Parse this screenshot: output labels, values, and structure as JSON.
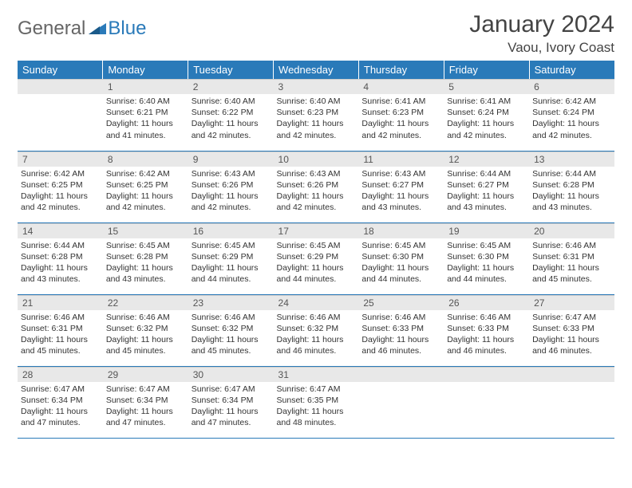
{
  "logo": {
    "part1": "General",
    "part2": "Blue"
  },
  "title": "January 2024",
  "location": "Vaou, Ivory Coast",
  "colors": {
    "header_bg": "#2a7ab9",
    "header_text": "#ffffff",
    "daynum_bg": "#e8e8e8",
    "body_text": "#333333",
    "row_border": "#2a7ab9"
  },
  "weekdays": [
    "Sunday",
    "Monday",
    "Tuesday",
    "Wednesday",
    "Thursday",
    "Friday",
    "Saturday"
  ],
  "leading_blanks": 1,
  "days": [
    {
      "n": "1",
      "sunrise": "6:40 AM",
      "sunset": "6:21 PM",
      "daylight": "11 hours and 41 minutes."
    },
    {
      "n": "2",
      "sunrise": "6:40 AM",
      "sunset": "6:22 PM",
      "daylight": "11 hours and 42 minutes."
    },
    {
      "n": "3",
      "sunrise": "6:40 AM",
      "sunset": "6:23 PM",
      "daylight": "11 hours and 42 minutes."
    },
    {
      "n": "4",
      "sunrise": "6:41 AM",
      "sunset": "6:23 PM",
      "daylight": "11 hours and 42 minutes."
    },
    {
      "n": "5",
      "sunrise": "6:41 AM",
      "sunset": "6:24 PM",
      "daylight": "11 hours and 42 minutes."
    },
    {
      "n": "6",
      "sunrise": "6:42 AM",
      "sunset": "6:24 PM",
      "daylight": "11 hours and 42 minutes."
    },
    {
      "n": "7",
      "sunrise": "6:42 AM",
      "sunset": "6:25 PM",
      "daylight": "11 hours and 42 minutes."
    },
    {
      "n": "8",
      "sunrise": "6:42 AM",
      "sunset": "6:25 PM",
      "daylight": "11 hours and 42 minutes."
    },
    {
      "n": "9",
      "sunrise": "6:43 AM",
      "sunset": "6:26 PM",
      "daylight": "11 hours and 42 minutes."
    },
    {
      "n": "10",
      "sunrise": "6:43 AM",
      "sunset": "6:26 PM",
      "daylight": "11 hours and 42 minutes."
    },
    {
      "n": "11",
      "sunrise": "6:43 AM",
      "sunset": "6:27 PM",
      "daylight": "11 hours and 43 minutes."
    },
    {
      "n": "12",
      "sunrise": "6:44 AM",
      "sunset": "6:27 PM",
      "daylight": "11 hours and 43 minutes."
    },
    {
      "n": "13",
      "sunrise": "6:44 AM",
      "sunset": "6:28 PM",
      "daylight": "11 hours and 43 minutes."
    },
    {
      "n": "14",
      "sunrise": "6:44 AM",
      "sunset": "6:28 PM",
      "daylight": "11 hours and 43 minutes."
    },
    {
      "n": "15",
      "sunrise": "6:45 AM",
      "sunset": "6:28 PM",
      "daylight": "11 hours and 43 minutes."
    },
    {
      "n": "16",
      "sunrise": "6:45 AM",
      "sunset": "6:29 PM",
      "daylight": "11 hours and 44 minutes."
    },
    {
      "n": "17",
      "sunrise": "6:45 AM",
      "sunset": "6:29 PM",
      "daylight": "11 hours and 44 minutes."
    },
    {
      "n": "18",
      "sunrise": "6:45 AM",
      "sunset": "6:30 PM",
      "daylight": "11 hours and 44 minutes."
    },
    {
      "n": "19",
      "sunrise": "6:45 AM",
      "sunset": "6:30 PM",
      "daylight": "11 hours and 44 minutes."
    },
    {
      "n": "20",
      "sunrise": "6:46 AM",
      "sunset": "6:31 PM",
      "daylight": "11 hours and 45 minutes."
    },
    {
      "n": "21",
      "sunrise": "6:46 AM",
      "sunset": "6:31 PM",
      "daylight": "11 hours and 45 minutes."
    },
    {
      "n": "22",
      "sunrise": "6:46 AM",
      "sunset": "6:32 PM",
      "daylight": "11 hours and 45 minutes."
    },
    {
      "n": "23",
      "sunrise": "6:46 AM",
      "sunset": "6:32 PM",
      "daylight": "11 hours and 45 minutes."
    },
    {
      "n": "24",
      "sunrise": "6:46 AM",
      "sunset": "6:32 PM",
      "daylight": "11 hours and 46 minutes."
    },
    {
      "n": "25",
      "sunrise": "6:46 AM",
      "sunset": "6:33 PM",
      "daylight": "11 hours and 46 minutes."
    },
    {
      "n": "26",
      "sunrise": "6:46 AM",
      "sunset": "6:33 PM",
      "daylight": "11 hours and 46 minutes."
    },
    {
      "n": "27",
      "sunrise": "6:47 AM",
      "sunset": "6:33 PM",
      "daylight": "11 hours and 46 minutes."
    },
    {
      "n": "28",
      "sunrise": "6:47 AM",
      "sunset": "6:34 PM",
      "daylight": "11 hours and 47 minutes."
    },
    {
      "n": "29",
      "sunrise": "6:47 AM",
      "sunset": "6:34 PM",
      "daylight": "11 hours and 47 minutes."
    },
    {
      "n": "30",
      "sunrise": "6:47 AM",
      "sunset": "6:34 PM",
      "daylight": "11 hours and 47 minutes."
    },
    {
      "n": "31",
      "sunrise": "6:47 AM",
      "sunset": "6:35 PM",
      "daylight": "11 hours and 48 minutes."
    }
  ],
  "labels": {
    "sunrise": "Sunrise:",
    "sunset": "Sunset:",
    "daylight": "Daylight:"
  }
}
